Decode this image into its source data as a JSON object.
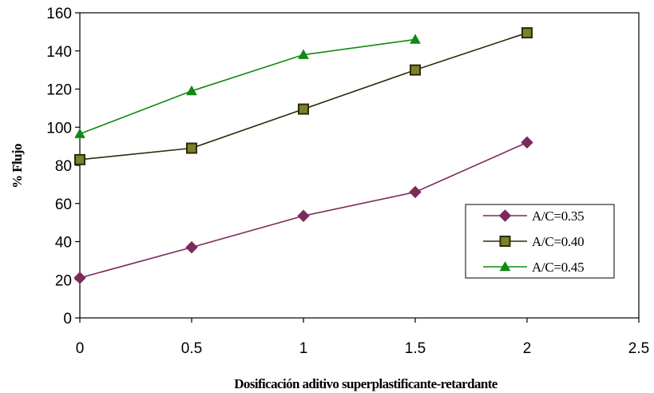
{
  "chart_data": {
    "type": "line",
    "xlabel": "Dosificación aditivo superplastificante-retardante",
    "ylabel": "% Flujo",
    "xlim": [
      0,
      2.5
    ],
    "ylim": [
      0,
      160
    ],
    "x_ticks": [
      "0",
      "0.5",
      "1",
      "1.5",
      "2",
      "2.5"
    ],
    "y_ticks": [
      "0",
      "20",
      "40",
      "60",
      "80",
      "100",
      "120",
      "140",
      "160"
    ],
    "grid": false,
    "legend_position": "right",
    "series": [
      {
        "name": "A/C=0.35",
        "color": "#7b2a5c",
        "marker": "diamond",
        "points": [
          [
            0,
            21
          ],
          [
            0.5,
            37
          ],
          [
            1,
            53.5
          ],
          [
            1.5,
            66
          ],
          [
            2,
            92
          ]
        ]
      },
      {
        "name": "A/C=0.40",
        "color": "#2b2b0a",
        "marker": "square",
        "marker_fill": "#7f7f2a",
        "points": [
          [
            0,
            83
          ],
          [
            0.5,
            89
          ],
          [
            1,
            109.5
          ],
          [
            1.5,
            130
          ],
          [
            2,
            149.5
          ]
        ]
      },
      {
        "name": "A/C=0.45",
        "color": "#118811",
        "marker": "triangle",
        "points": [
          [
            0,
            96.5
          ],
          [
            0.5,
            119
          ],
          [
            1,
            138
          ],
          [
            1.5,
            146
          ]
        ]
      }
    ]
  }
}
